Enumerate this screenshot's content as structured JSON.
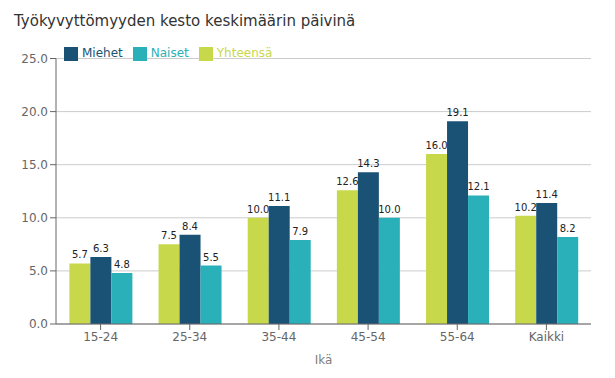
{
  "chart_data": {
    "type": "bar",
    "title": "Työkyvyttömyyden kesto keskimäärin päivinä",
    "xlabel": "Ikä",
    "categories": [
      "15-24",
      "25-34",
      "35-44",
      "45-54",
      "55-64",
      "Kaikki"
    ],
    "series": [
      {
        "name": "Yhteensä",
        "color": "#c8d84b",
        "values": [
          5.7,
          7.5,
          10.0,
          12.6,
          16.0,
          10.2
        ],
        "value_labels": [
          "5.7",
          "7.5",
          "10.0",
          "12.6",
          "16.0",
          "10.2"
        ]
      },
      {
        "name": "Miehet",
        "color": "#1a5276",
        "values": [
          6.3,
          8.4,
          11.1,
          14.3,
          19.1,
          11.4
        ],
        "value_labels": [
          "6.3",
          "8.4",
          "11.1",
          "14.3",
          "19.1",
          "11.4"
        ]
      },
      {
        "name": "Naiset",
        "color": "#2ab0b8",
        "values": [
          4.8,
          5.5,
          7.9,
          10.0,
          12.1,
          8.2
        ],
        "value_labels": [
          "4.8",
          "5.5",
          "7.9",
          "10.0",
          "12.1",
          "8.2"
        ]
      }
    ],
    "ylim": [
      0,
      25.0
    ],
    "yticks": [
      {
        "value": 0,
        "label": "0.0"
      },
      {
        "value": 5,
        "label": "5.0"
      },
      {
        "value": 10,
        "label": "10.0"
      },
      {
        "value": 15,
        "label": "15.0"
      },
      {
        "value": 20,
        "label": "20.0"
      },
      {
        "value": 25,
        "label": "25.0"
      }
    ],
    "grid": true,
    "legend": "top-left",
    "data_labels": true
  }
}
